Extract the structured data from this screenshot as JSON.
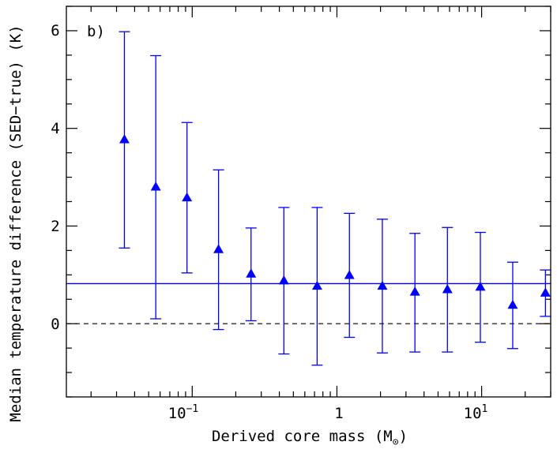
{
  "chart_data": {
    "type": "scatter",
    "panel_label": "b)",
    "xlabel_main": "Derived core mass (M",
    "xlabel_end": ")",
    "ylabel": "Median temperature difference (SED−true) (K)",
    "xscale": "log",
    "xlim": [
      0.0135,
      30
    ],
    "ylim": [
      -1.5,
      6.5
    ],
    "x_ticks": [
      {
        "base": "10",
        "exp": "−1",
        "value": 0.1
      },
      {
        "base": "1",
        "exp": "",
        "value": 1
      },
      {
        "base": "10",
        "exp": "1",
        "value": 10
      }
    ],
    "y_ticks": [
      {
        "label": "0",
        "value": 0
      },
      {
        "label": "2",
        "value": 2
      },
      {
        "label": "4",
        "value": 4
      },
      {
        "label": "6",
        "value": 6
      }
    ],
    "reference_lines": [
      {
        "name": "mean-offset-line",
        "value": 0.82,
        "style": "solid",
        "color": "#0000ff"
      },
      {
        "name": "zero-line",
        "value": 0,
        "style": "dashed",
        "color": "#000000"
      }
    ],
    "series": [
      {
        "name": "median temperature difference",
        "marker": "triangle",
        "color": "#0000ff",
        "points": [
          {
            "x": 0.034,
            "y": 3.77,
            "ylow": 1.55,
            "yhigh": 5.98
          },
          {
            "x": 0.056,
            "y": 2.8,
            "ylow": 0.1,
            "yhigh": 5.49
          },
          {
            "x": 0.092,
            "y": 2.58,
            "ylow": 1.04,
            "yhigh": 4.12
          },
          {
            "x": 0.152,
            "y": 1.52,
            "ylow": -0.12,
            "yhigh": 3.15
          },
          {
            "x": 0.255,
            "y": 1.02,
            "ylow": 0.06,
            "yhigh": 1.96
          },
          {
            "x": 0.43,
            "y": 0.88,
            "ylow": -0.62,
            "yhigh": 2.38
          },
          {
            "x": 0.73,
            "y": 0.77,
            "ylow": -0.85,
            "yhigh": 2.38
          },
          {
            "x": 1.22,
            "y": 0.99,
            "ylow": -0.28,
            "yhigh": 2.26
          },
          {
            "x": 2.06,
            "y": 0.77,
            "ylow": -0.6,
            "yhigh": 2.14
          },
          {
            "x": 3.46,
            "y": 0.65,
            "ylow": -0.58,
            "yhigh": 1.85
          },
          {
            "x": 5.8,
            "y": 0.7,
            "ylow": -0.58,
            "yhigh": 1.97
          },
          {
            "x": 9.8,
            "y": 0.75,
            "ylow": -0.38,
            "yhigh": 1.87
          },
          {
            "x": 16.4,
            "y": 0.38,
            "ylow": -0.51,
            "yhigh": 1.26
          },
          {
            "x": 27.6,
            "y": 0.63,
            "ylow": 0.15,
            "yhigh": 1.1
          }
        ]
      }
    ]
  }
}
